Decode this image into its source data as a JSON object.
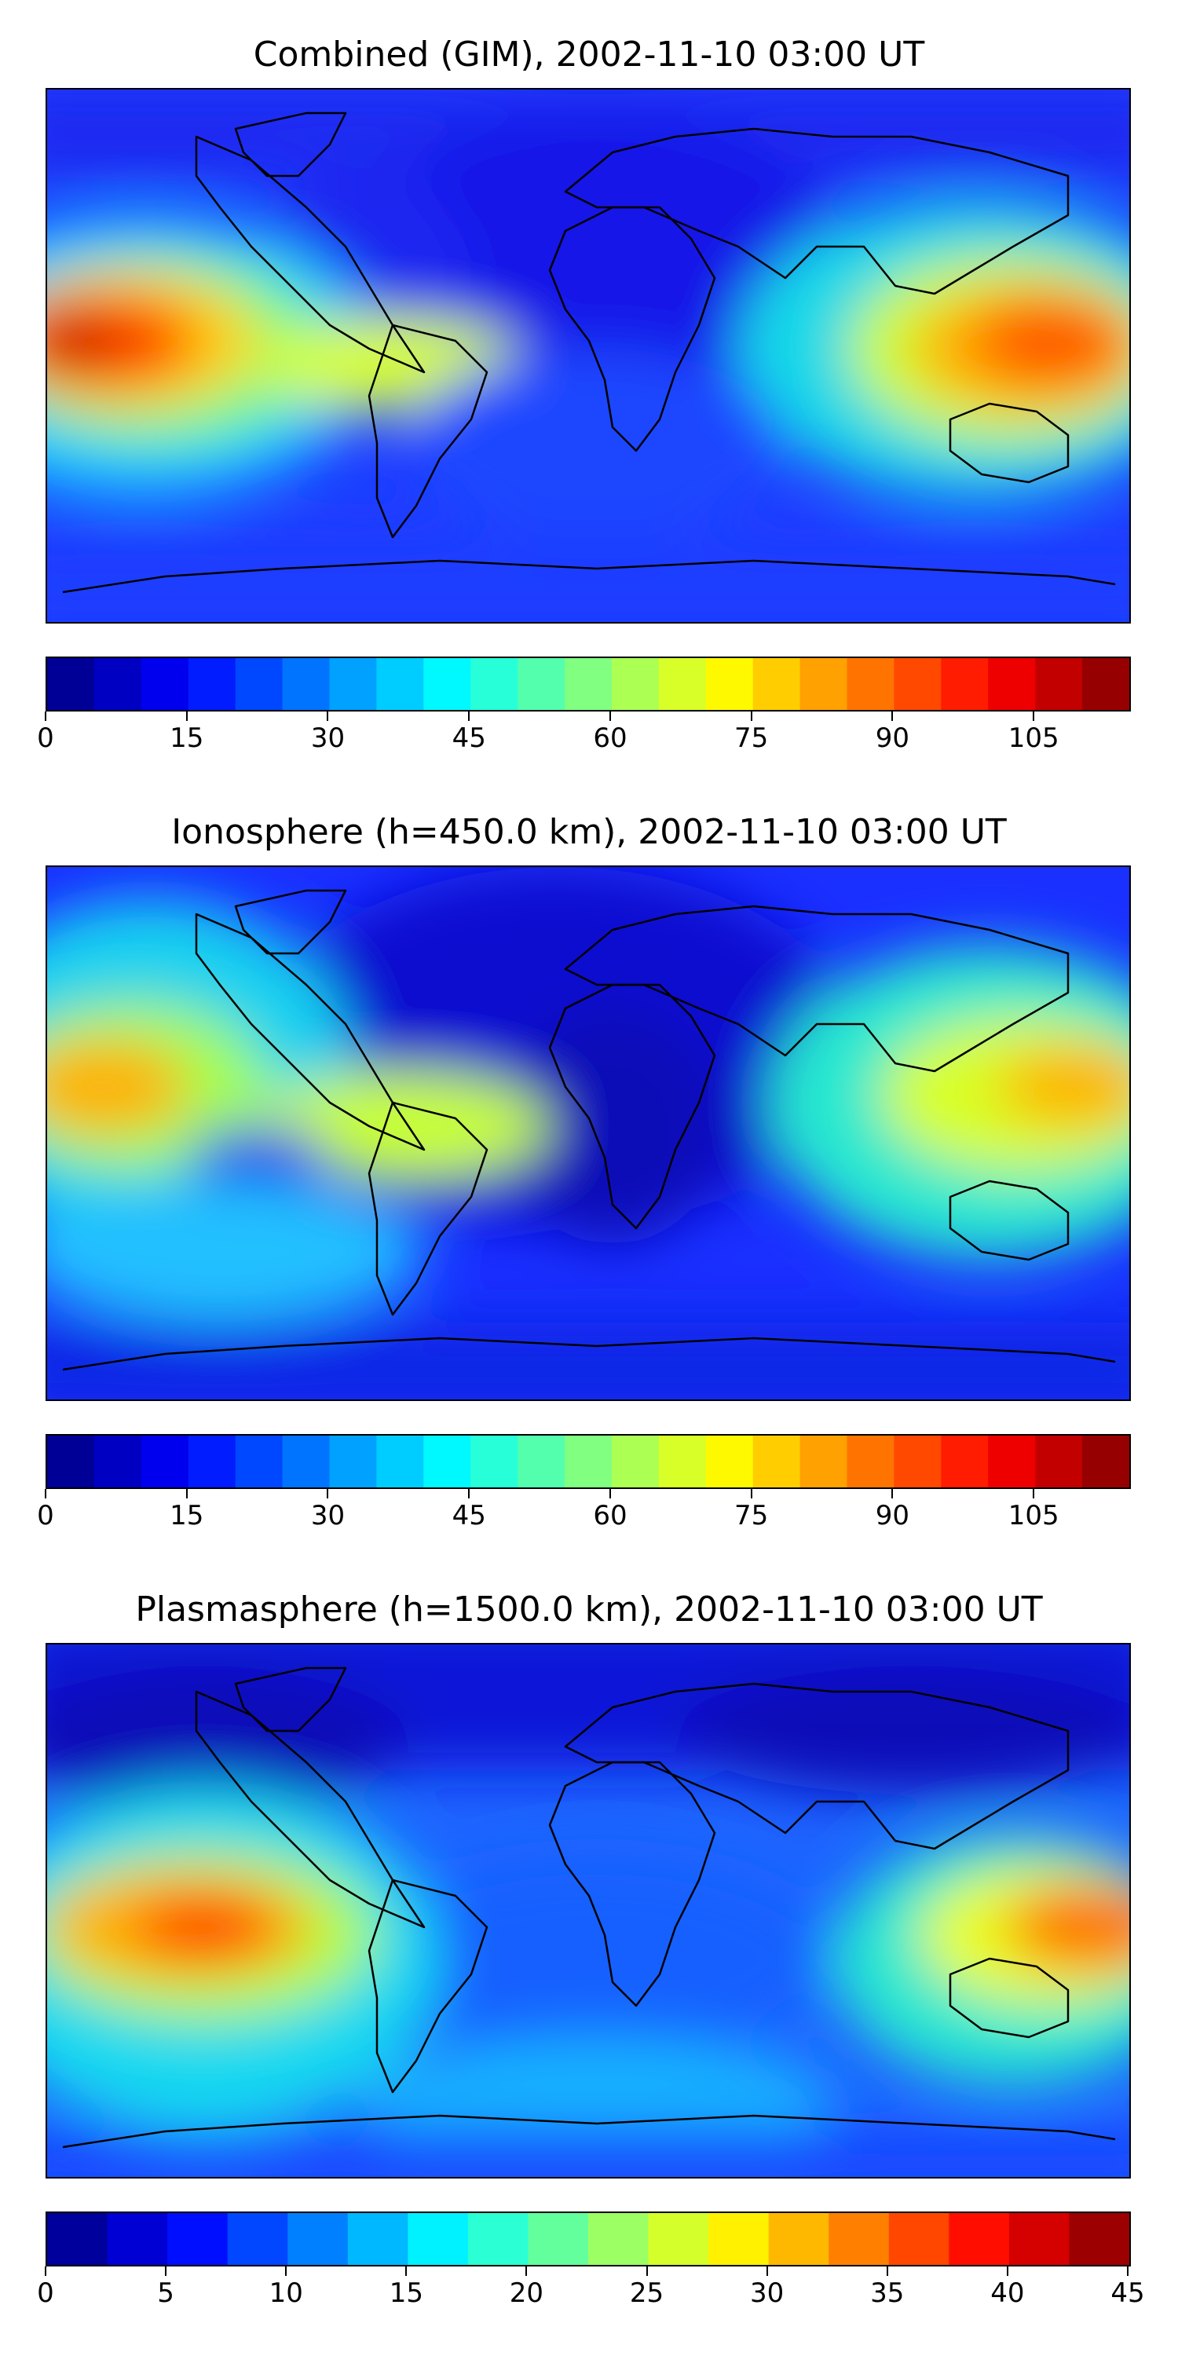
{
  "chart_data": [
    {
      "type": "heatmap",
      "title": "Combined (GIM), 2002-11-10 03:00 UT",
      "projection": "plate carree world map with coastlines",
      "colormap": "jet",
      "levels": [
        0,
        5,
        10,
        15,
        20,
        25,
        30,
        35,
        40,
        45,
        50,
        55,
        60,
        65,
        70,
        75,
        80,
        85,
        90,
        95,
        100,
        105,
        110,
        115
      ],
      "colorbar_ticks": [
        0,
        15,
        30,
        45,
        60,
        75,
        90,
        105
      ],
      "vmin": 0,
      "vmax": 115,
      "features": [
        {
          "lon": -175,
          "lat": 12,
          "value": 105
        },
        {
          "lon": 145,
          "lat": 10,
          "value": 95
        },
        {
          "lon": -100,
          "lat": 5,
          "value": 75
        },
        {
          "lon": -10,
          "lat": 30,
          "value": 15
        }
      ]
    },
    {
      "type": "heatmap",
      "title": "Ionosphere  (h=450.0 km), 2002-11-10 03:00 UT",
      "projection": "plate carree world map with coastlines",
      "colormap": "jet",
      "levels": [
        0,
        5,
        10,
        15,
        20,
        25,
        30,
        35,
        40,
        45,
        50,
        55,
        60,
        65,
        70,
        75,
        80,
        85,
        90,
        95,
        100,
        105,
        110,
        115
      ],
      "colorbar_ticks": [
        0,
        15,
        30,
        45,
        60,
        75,
        90,
        105
      ],
      "vmin": 0,
      "vmax": 115,
      "features": [
        {
          "lon": -175,
          "lat": 15,
          "value": 80
        },
        {
          "lon": 165,
          "lat": 15,
          "value": 80
        },
        {
          "lon": -120,
          "lat": -5,
          "value": 15
        },
        {
          "lon": 10,
          "lat": 20,
          "value": 5
        }
      ]
    },
    {
      "type": "heatmap",
      "title": "Plasmasphere (h=1500.0 km), 2002-11-10 03:00 UT",
      "projection": "plate carree world map with coastlines",
      "colormap": "jet",
      "levels": [
        0,
        2.5,
        5,
        7.5,
        10,
        12.5,
        15,
        17.5,
        20,
        22.5,
        25,
        27.5,
        30,
        32.5,
        35,
        37.5,
        40,
        42.5,
        45
      ],
      "colorbar_ticks": [
        0,
        5,
        10,
        15,
        20,
        25,
        30,
        35,
        40,
        45
      ],
      "vmin": 0,
      "vmax": 45,
      "features": [
        {
          "lon": -130,
          "lat": 5,
          "value": 40
        },
        {
          "lon": 175,
          "lat": 2,
          "value": 35
        },
        {
          "lon": -90,
          "lat": -50,
          "value": 17
        },
        {
          "lon": 60,
          "lat": 60,
          "value": 3
        }
      ]
    }
  ]
}
